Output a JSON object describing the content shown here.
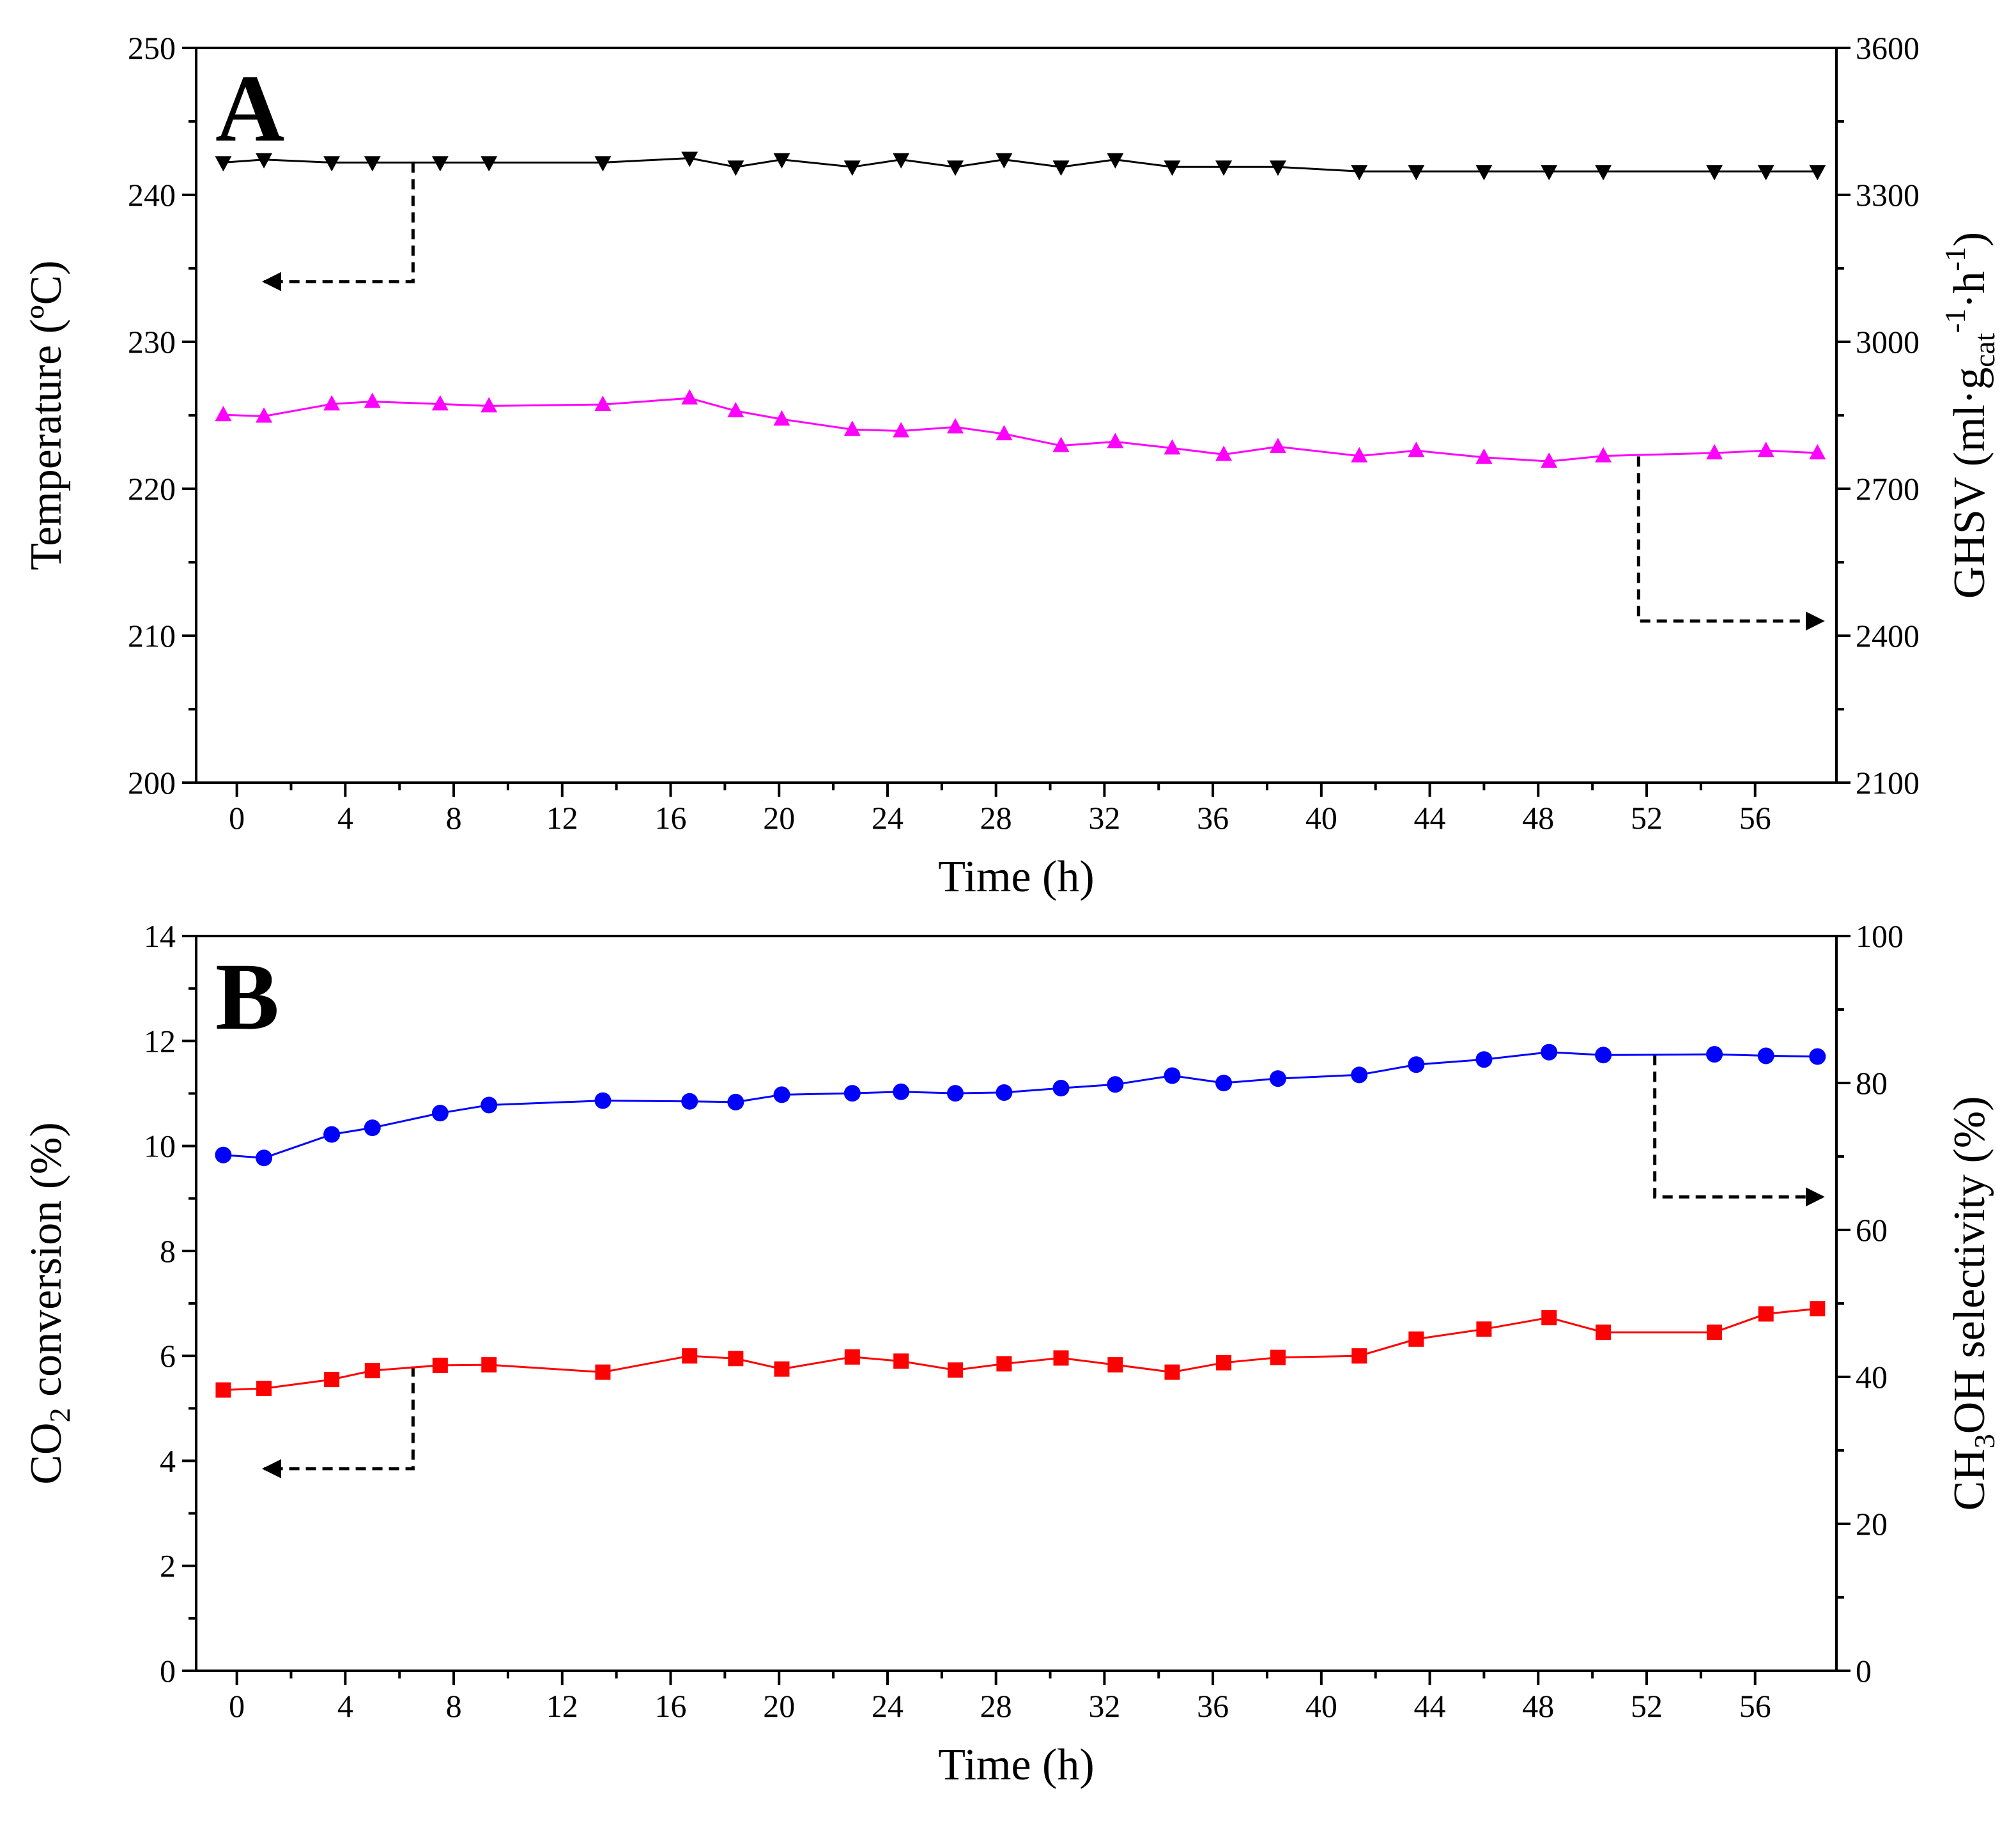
{
  "chart_data": [
    {
      "panel": "A",
      "type": "line",
      "xlabel": "Time (h)",
      "xlim": [
        -1.5,
        59
      ],
      "xticks": [
        0,
        4,
        8,
        12,
        16,
        20,
        24,
        28,
        32,
        36,
        40,
        44,
        48,
        52,
        56
      ],
      "ylabel_left": "Temperature (ºC)",
      "ylim_left": [
        200,
        250
      ],
      "yticks_left": [
        200,
        210,
        220,
        230,
        240,
        250
      ],
      "ylabel_right": {
        "main": "GHSV (ml·g",
        "sub": "cat",
        "sup1": "-1",
        "mid": "·h",
        "sup2": "-1",
        "end": ")"
      },
      "ylim_right": [
        2100,
        3600
      ],
      "yticks_right": [
        2100,
        2400,
        2700,
        3000,
        3300,
        3600
      ],
      "series": [
        {
          "name": "Temperature",
          "axis": "left",
          "marker": "triangle-down",
          "color": "#000000",
          "x": [
            -0.5,
            1,
            3.5,
            5,
            7.5,
            9.3,
            13.5,
            16.7,
            18.4,
            20.1,
            22.7,
            24.5,
            26.5,
            28.3,
            30.4,
            32.4,
            34.5,
            36.4,
            38.4,
            41.4,
            43.5,
            46,
            48.4,
            50.4,
            54.5,
            56.4,
            58.3
          ],
          "y": [
            242.2,
            242.4,
            242.2,
            242.2,
            242.2,
            242.2,
            242.2,
            242.5,
            241.9,
            242.4,
            241.9,
            242.4,
            241.9,
            242.4,
            241.9,
            242.4,
            241.9,
            241.9,
            241.9,
            241.6,
            241.6,
            241.6,
            241.6,
            241.6,
            241.6,
            241.6,
            241.6
          ]
        },
        {
          "name": "GHSV",
          "axis": "right",
          "marker": "triangle-up",
          "color": "#ff00ff",
          "x": [
            -0.5,
            1,
            3.5,
            5,
            7.5,
            9.3,
            13.5,
            16.7,
            18.4,
            20.1,
            22.7,
            24.5,
            26.5,
            28.3,
            30.4,
            32.4,
            34.5,
            36.4,
            38.4,
            41.4,
            43.5,
            46,
            48.4,
            50.4,
            54.5,
            56.4,
            58.3
          ],
          "y": [
            2851,
            2848,
            2873,
            2878,
            2873,
            2869,
            2872,
            2885,
            2859,
            2842,
            2821,
            2818,
            2826,
            2812,
            2788,
            2796,
            2783,
            2770,
            2786,
            2767,
            2778,
            2764,
            2756,
            2767,
            2773,
            2778,
            2773
          ]
        }
      ],
      "guides": [
        {
          "from_series": "Temperature",
          "points": [
            [
              6.5,
              242.2
            ],
            [
              6.5,
              234.1
            ],
            [
              1,
              234.1
            ]
          ],
          "arrow_to": "left"
        },
        {
          "from_series": "GHSV",
          "points": [
            [
              51.7,
              2766
            ],
            [
              51.7,
              2430
            ],
            [
              58.5,
              2430
            ]
          ],
          "arrow_to": "right"
        }
      ]
    },
    {
      "panel": "B",
      "type": "line",
      "xlabel": "Time (h)",
      "xlim": [
        -1.5,
        59
      ],
      "xticks": [
        0,
        4,
        8,
        12,
        16,
        20,
        24,
        28,
        32,
        36,
        40,
        44,
        48,
        52,
        56
      ],
      "ylabel_left": {
        "main": "CO",
        "sub": "2",
        "end": " conversion (%)"
      },
      "ylim_left": [
        0,
        14
      ],
      "yticks_left": [
        0,
        2,
        4,
        6,
        8,
        10,
        12,
        14
      ],
      "ylabel_right": {
        "main": "CH",
        "sub": "3",
        "end": "OH selectivity (%)"
      },
      "ylim_right": [
        0,
        100
      ],
      "yticks_right": [
        0,
        20,
        40,
        60,
        80,
        100
      ],
      "series": [
        {
          "name": "CO2 conversion",
          "axis": "left",
          "marker": "square",
          "color": "#ff0000",
          "x": [
            -0.5,
            1,
            3.5,
            5,
            7.5,
            9.3,
            13.5,
            16.7,
            18.4,
            20.1,
            22.7,
            24.5,
            26.5,
            28.3,
            30.4,
            32.4,
            34.5,
            36.4,
            38.4,
            41.4,
            43.5,
            46,
            48.4,
            50.4,
            54.5,
            56.4,
            58.3
          ],
          "y": [
            5.35,
            5.38,
            5.55,
            5.72,
            5.82,
            5.83,
            5.69,
            6.0,
            5.95,
            5.75,
            5.98,
            5.9,
            5.73,
            5.85,
            5.96,
            5.83,
            5.69,
            5.87,
            5.97,
            6.0,
            6.32,
            6.51,
            6.73,
            6.45,
            6.45,
            6.8,
            6.9
          ]
        },
        {
          "name": "CH3OH selectivity",
          "axis": "right",
          "marker": "circle",
          "color": "#0000ff",
          "x": [
            -0.5,
            1,
            3.5,
            5,
            7.5,
            9.3,
            13.5,
            16.7,
            18.4,
            20.1,
            22.7,
            24.5,
            26.5,
            28.3,
            30.4,
            32.4,
            34.5,
            36.4,
            38.4,
            41.4,
            43.5,
            46,
            48.4,
            50.4,
            54.5,
            56.4,
            58.3
          ],
          "y": [
            70.2,
            69.8,
            73.0,
            73.9,
            75.9,
            77.0,
            77.6,
            77.5,
            77.4,
            78.4,
            78.6,
            78.8,
            78.6,
            78.7,
            79.3,
            79.8,
            81.0,
            80.0,
            80.6,
            81.1,
            82.5,
            83.2,
            84.2,
            83.8,
            83.9,
            83.7,
            83.6
          ]
        }
      ],
      "guides": [
        {
          "from_series": "CO2 conversion",
          "points": [
            [
              6.5,
              5.8
            ],
            [
              6.5,
              3.85
            ],
            [
              1,
              3.85
            ]
          ],
          "arrow_to": "left"
        },
        {
          "from_series": "CH3OH selectivity",
          "points": [
            [
              52.3,
              83.8
            ],
            [
              52.3,
              64.5
            ],
            [
              58.5,
              64.5
            ]
          ],
          "arrow_to": "right"
        }
      ]
    }
  ]
}
